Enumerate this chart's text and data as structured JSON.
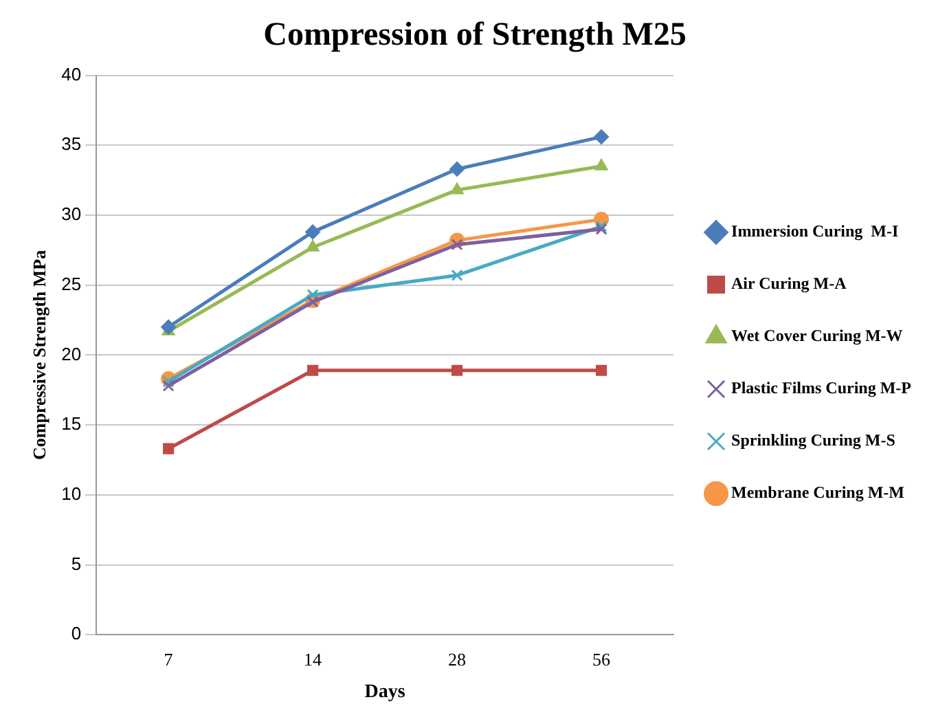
{
  "chart_data": {
    "type": "line",
    "title": "Compression of Strength M25",
    "xlabel": "Days",
    "ylabel": "Compressive Strength MPa",
    "categories": [
      "7",
      "14",
      "28",
      "56"
    ],
    "series": [
      {
        "name": "Immersion Curing  M-I",
        "color": "#4a7ebb",
        "marker": "diamond",
        "values": [
          22.0,
          28.8,
          33.3,
          35.6
        ]
      },
      {
        "name": "Air Curing M-A",
        "color": "#be4b48",
        "marker": "square",
        "values": [
          13.3,
          18.9,
          18.9,
          18.9
        ]
      },
      {
        "name": "Wet Cover Curing M-W",
        "color": "#98b954",
        "marker": "triangle",
        "values": [
          21.7,
          27.7,
          31.8,
          33.5
        ]
      },
      {
        "name": "Plastic Films Curing M-P",
        "color": "#7d60a0",
        "marker": "cross",
        "values": [
          17.8,
          23.8,
          27.9,
          29.0
        ]
      },
      {
        "name": "Sprinkling Curing M-S",
        "color": "#46aac5",
        "marker": "cross",
        "values": [
          18.1,
          24.3,
          25.7,
          29.2
        ]
      },
      {
        "name": "Membrane Curing M-M",
        "color": "#f79646",
        "marker": "circle",
        "values": [
          18.3,
          23.9,
          28.2,
          29.7
        ]
      }
    ],
    "ylim": [
      0,
      40
    ],
    "yticks": [
      0,
      5,
      10,
      15,
      20,
      25,
      30,
      35,
      40
    ],
    "grid": "y",
    "legend": "right"
  }
}
